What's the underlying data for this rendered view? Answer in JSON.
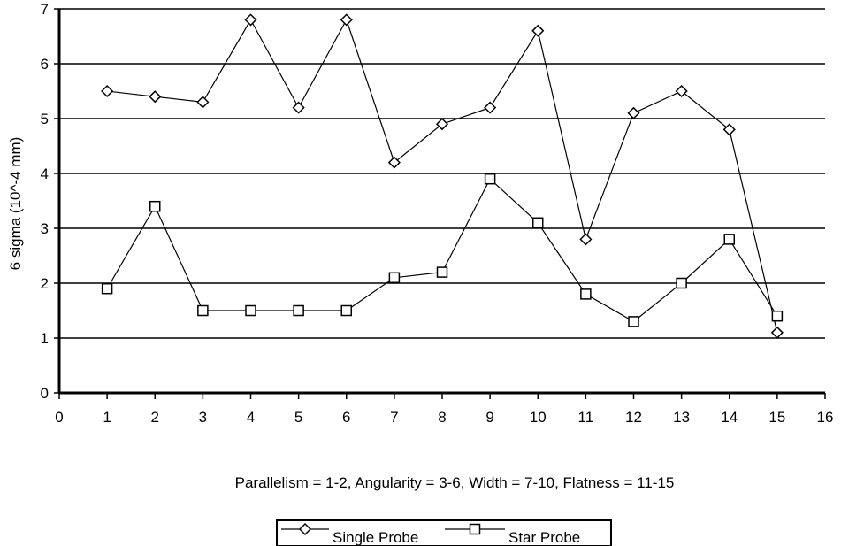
{
  "chart_data": {
    "type": "line",
    "title": "",
    "xlabel": "Parallelism = 1-2, Angularity = 3-6, Width = 7-10, Flatness = 11-15",
    "ylabel": "6 sigma (10^-4 mm)",
    "xlim": [
      0,
      16
    ],
    "ylim": [
      0,
      7
    ],
    "x_ticks": [
      "0",
      "1",
      "2",
      "3",
      "4",
      "5",
      "6",
      "7",
      "8",
      "9",
      "10",
      "11",
      "12",
      "13",
      "14",
      "15",
      "16"
    ],
    "y_ticks": [
      "0",
      "1",
      "2",
      "3",
      "4",
      "5",
      "6",
      "7"
    ],
    "grid": "horizontal",
    "legend_position": "bottom-center",
    "x": [
      1,
      2,
      3,
      4,
      5,
      6,
      7,
      8,
      9,
      10,
      11,
      12,
      13,
      14,
      15
    ],
    "series": [
      {
        "name": "Single Probe",
        "marker": "diamond",
        "values": [
          5.5,
          5.4,
          5.3,
          6.8,
          5.2,
          6.8,
          4.2,
          4.9,
          5.2,
          6.6,
          2.8,
          5.1,
          5.5,
          4.8,
          1.1
        ]
      },
      {
        "name": "Star Probe",
        "marker": "square",
        "values": [
          1.9,
          3.4,
          1.5,
          1.5,
          1.5,
          1.5,
          2.1,
          2.2,
          3.9,
          3.1,
          1.8,
          1.3,
          2.0,
          2.8,
          1.4
        ]
      }
    ]
  }
}
